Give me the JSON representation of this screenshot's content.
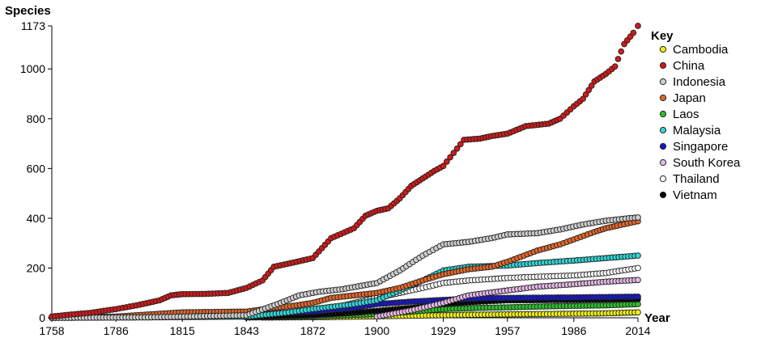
{
  "chart_data": {
    "type": "scatter",
    "title": "",
    "ylabel": "Species",
    "xlabel": "Year",
    "xlim": [
      1758,
      2014
    ],
    "ylim": [
      0,
      1173
    ],
    "x_ticks": [
      1758,
      1786,
      1815,
      1843,
      1872,
      1900,
      1929,
      1957,
      1986,
      2014
    ],
    "y_ticks": [
      0,
      200,
      400,
      600,
      800,
      1000,
      1173
    ],
    "grid": false,
    "legend": {
      "title": "Key",
      "placement": "right"
    },
    "series": [
      {
        "name": "Cambodia",
        "color": "#f2f20a",
        "points": [
          [
            1850,
            1
          ],
          [
            1880,
            3
          ],
          [
            1900,
            6
          ],
          [
            1920,
            9
          ],
          [
            1940,
            12
          ],
          [
            1960,
            14
          ],
          [
            1980,
            16
          ],
          [
            2000,
            18
          ],
          [
            2014,
            22
          ]
        ]
      },
      {
        "name": "China",
        "color": "#d01a1a",
        "points": [
          [
            1758,
            5
          ],
          [
            1765,
            12
          ],
          [
            1775,
            20
          ],
          [
            1786,
            35
          ],
          [
            1795,
            50
          ],
          [
            1805,
            70
          ],
          [
            1810,
            90
          ],
          [
            1815,
            95
          ],
          [
            1825,
            96
          ],
          [
            1835,
            100
          ],
          [
            1843,
            120
          ],
          [
            1850,
            150
          ],
          [
            1855,
            205
          ],
          [
            1865,
            225
          ],
          [
            1872,
            240
          ],
          [
            1880,
            320
          ],
          [
            1890,
            360
          ],
          [
            1895,
            410
          ],
          [
            1900,
            430
          ],
          [
            1905,
            440
          ],
          [
            1910,
            480
          ],
          [
            1915,
            530
          ],
          [
            1920,
            560
          ],
          [
            1925,
            590
          ],
          [
            1929,
            610
          ],
          [
            1935,
            680
          ],
          [
            1938,
            715
          ],
          [
            1945,
            720
          ],
          [
            1950,
            730
          ],
          [
            1957,
            740
          ],
          [
            1965,
            770
          ],
          [
            1975,
            780
          ],
          [
            1980,
            800
          ],
          [
            1986,
            850
          ],
          [
            1990,
            880
          ],
          [
            1995,
            950
          ],
          [
            2000,
            980
          ],
          [
            2004,
            1010
          ],
          [
            2008,
            1100
          ],
          [
            2012,
            1145
          ],
          [
            2014,
            1173
          ]
        ]
      },
      {
        "name": "Indonesia",
        "color": "#cfcfcf",
        "points": [
          [
            1758,
            0
          ],
          [
            1800,
            2
          ],
          [
            1843,
            10
          ],
          [
            1858,
            60
          ],
          [
            1866,
            90
          ],
          [
            1875,
            105
          ],
          [
            1885,
            115
          ],
          [
            1900,
            140
          ],
          [
            1910,
            190
          ],
          [
            1920,
            250
          ],
          [
            1929,
            295
          ],
          [
            1940,
            305
          ],
          [
            1950,
            320
          ],
          [
            1957,
            335
          ],
          [
            1970,
            340
          ],
          [
            1980,
            355
          ],
          [
            1990,
            375
          ],
          [
            2000,
            390
          ],
          [
            2010,
            400
          ],
          [
            2014,
            403
          ]
        ]
      },
      {
        "name": "Japan",
        "color": "#e3672a",
        "points": [
          [
            1758,
            0
          ],
          [
            1786,
            5
          ],
          [
            1815,
            22
          ],
          [
            1843,
            25
          ],
          [
            1855,
            40
          ],
          [
            1865,
            50
          ],
          [
            1872,
            60
          ],
          [
            1880,
            80
          ],
          [
            1890,
            90
          ],
          [
            1900,
            100
          ],
          [
            1910,
            120
          ],
          [
            1920,
            150
          ],
          [
            1929,
            175
          ],
          [
            1940,
            195
          ],
          [
            1950,
            205
          ],
          [
            1957,
            225
          ],
          [
            1970,
            270
          ],
          [
            1980,
            295
          ],
          [
            1986,
            315
          ],
          [
            1995,
            345
          ],
          [
            2000,
            360
          ],
          [
            2005,
            370
          ],
          [
            2014,
            388
          ]
        ]
      },
      {
        "name": "Laos",
        "color": "#2bc02b",
        "points": [
          [
            1843,
            1
          ],
          [
            1872,
            5
          ],
          [
            1900,
            15
          ],
          [
            1915,
            25
          ],
          [
            1929,
            35
          ],
          [
            1945,
            40
          ],
          [
            1957,
            42
          ],
          [
            1970,
            45
          ],
          [
            1986,
            48
          ],
          [
            2000,
            50
          ],
          [
            2014,
            55
          ]
        ]
      },
      {
        "name": "Malaysia",
        "color": "#2fd6d6",
        "points": [
          [
            1758,
            0
          ],
          [
            1843,
            5
          ],
          [
            1860,
            20
          ],
          [
            1872,
            35
          ],
          [
            1890,
            55
          ],
          [
            1900,
            70
          ],
          [
            1910,
            110
          ],
          [
            1920,
            150
          ],
          [
            1929,
            190
          ],
          [
            1940,
            205
          ],
          [
            1957,
            210
          ],
          [
            1970,
            220
          ],
          [
            1986,
            230
          ],
          [
            2000,
            240
          ],
          [
            2014,
            250
          ]
        ]
      },
      {
        "name": "Singapore",
        "color": "#1818c8",
        "points": [
          [
            1843,
            10
          ],
          [
            1855,
            18
          ],
          [
            1872,
            25
          ],
          [
            1890,
            40
          ],
          [
            1900,
            55
          ],
          [
            1915,
            65
          ],
          [
            1929,
            72
          ],
          [
            1945,
            78
          ],
          [
            1957,
            80
          ],
          [
            1986,
            82
          ],
          [
            2014,
            85
          ]
        ]
      },
      {
        "name": "South Korea",
        "color": "#e6b8e6",
        "points": [
          [
            1900,
            5
          ],
          [
            1915,
            30
          ],
          [
            1929,
            60
          ],
          [
            1940,
            90
          ],
          [
            1957,
            110
          ],
          [
            1970,
            125
          ],
          [
            1986,
            135
          ],
          [
            2000,
            145
          ],
          [
            2014,
            152
          ]
        ]
      },
      {
        "name": "Thailand",
        "color": "#ffffff",
        "points": [
          [
            1758,
            0
          ],
          [
            1800,
            2
          ],
          [
            1843,
            5
          ],
          [
            1872,
            20
          ],
          [
            1890,
            60
          ],
          [
            1900,
            80
          ],
          [
            1910,
            100
          ],
          [
            1920,
            120
          ],
          [
            1929,
            140
          ],
          [
            1940,
            150
          ],
          [
            1957,
            160
          ],
          [
            1970,
            165
          ],
          [
            1986,
            170
          ],
          [
            2000,
            180
          ],
          [
            2014,
            200
          ]
        ]
      },
      {
        "name": "Vietnam",
        "color": "#000000",
        "points": [
          [
            1843,
            2
          ],
          [
            1872,
            10
          ],
          [
            1890,
            20
          ],
          [
            1900,
            28
          ],
          [
            1915,
            40
          ],
          [
            1929,
            55
          ],
          [
            1945,
            65
          ],
          [
            1957,
            70
          ],
          [
            1986,
            72
          ],
          [
            2014,
            75
          ]
        ]
      }
    ]
  }
}
